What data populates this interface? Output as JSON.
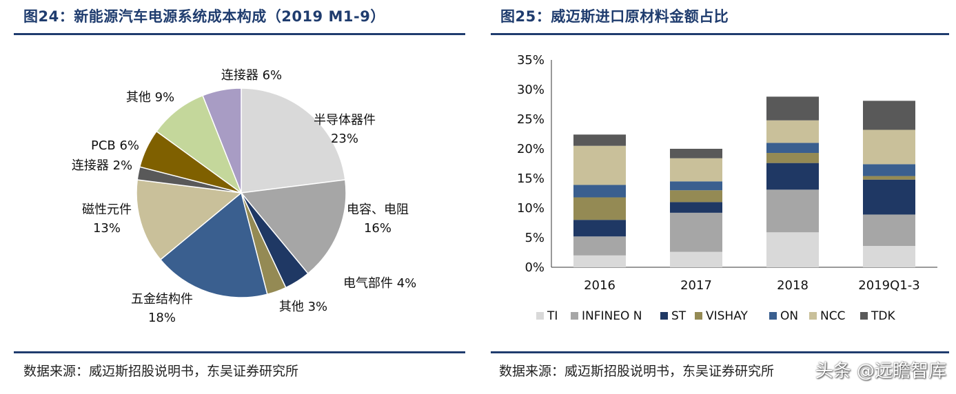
{
  "left": {
    "title": "图24：新能源汽车电源系统成本构成（2019 M1-9）",
    "source": "数据来源：威迈斯招股说明书，东吴证券研究所",
    "chart_data": {
      "type": "pie",
      "title": "新能源汽车电源系统成本构成（2019 M1-9）",
      "slices": [
        {
          "label": "半导体器件",
          "pct_text": "23%",
          "value": 23,
          "color": "#d9d9d9"
        },
        {
          "label": "电容、电阻",
          "pct_text": "16%",
          "value": 16,
          "color": "#a6a6a6"
        },
        {
          "label": "电气部件",
          "pct_text": "4%",
          "value": 4,
          "color": "#1f3864"
        },
        {
          "label": "其他",
          "pct_text": "3%",
          "value": 3,
          "color": "#948a54"
        },
        {
          "label": "五金结构件",
          "pct_text": "18%",
          "value": 18,
          "color": "#3a5f8f"
        },
        {
          "label": "磁性元件",
          "pct_text": "13%",
          "value": 13,
          "color": "#c9c09a"
        },
        {
          "label": "连接器",
          "pct_text": "2%",
          "value": 2,
          "color": "#595959"
        },
        {
          "label": "PCB",
          "pct_text": "6%",
          "value": 6,
          "color": "#7f6000"
        },
        {
          "label": "其他",
          "pct_text": "9%",
          "value": 9,
          "color": "#c4d79b"
        },
        {
          "label": "连接器",
          "pct_text": "6%",
          "value": 6,
          "color": "#a89cc4"
        }
      ]
    }
  },
  "right": {
    "title": "图25：威迈斯进口原材料金额占比",
    "source": "数据来源：威迈斯招股说明书，东吴证券研究所",
    "watermark": "头条 @远瞻智库",
    "chart_data": {
      "type": "bar",
      "stacked": true,
      "categories": [
        "2016",
        "2017",
        "2018",
        "2019Q1-3"
      ],
      "ylim": [
        0,
        35
      ],
      "yticks": [
        0,
        5,
        10,
        15,
        20,
        25,
        30,
        35
      ],
      "ytick_labels": [
        "0%",
        "5%",
        "10%",
        "15%",
        "20%",
        "25%",
        "30%",
        "35%"
      ],
      "legend_position": "bottom",
      "series": [
        {
          "name": "TI",
          "color": "#d9d9d9",
          "values": [
            2.0,
            2.6,
            5.9,
            3.6
          ]
        },
        {
          "name": "INFINEO N",
          "color": "#a6a6a6",
          "values": [
            3.2,
            6.6,
            7.2,
            5.3
          ]
        },
        {
          "name": "ST",
          "color": "#1f3864",
          "values": [
            2.8,
            1.8,
            4.5,
            5.9
          ]
        },
        {
          "name": "VISHAY",
          "color": "#948a54",
          "values": [
            3.8,
            2.0,
            1.7,
            0.6
          ]
        },
        {
          "name": "ON",
          "color": "#3a5f8f",
          "values": [
            2.1,
            1.5,
            1.7,
            2.0
          ]
        },
        {
          "name": "NCC",
          "color": "#c9c09a",
          "values": [
            6.6,
            3.9,
            3.8,
            5.8
          ]
        },
        {
          "name": "TDK",
          "color": "#595959",
          "values": [
            1.9,
            1.6,
            4.0,
            4.9
          ]
        }
      ]
    }
  }
}
